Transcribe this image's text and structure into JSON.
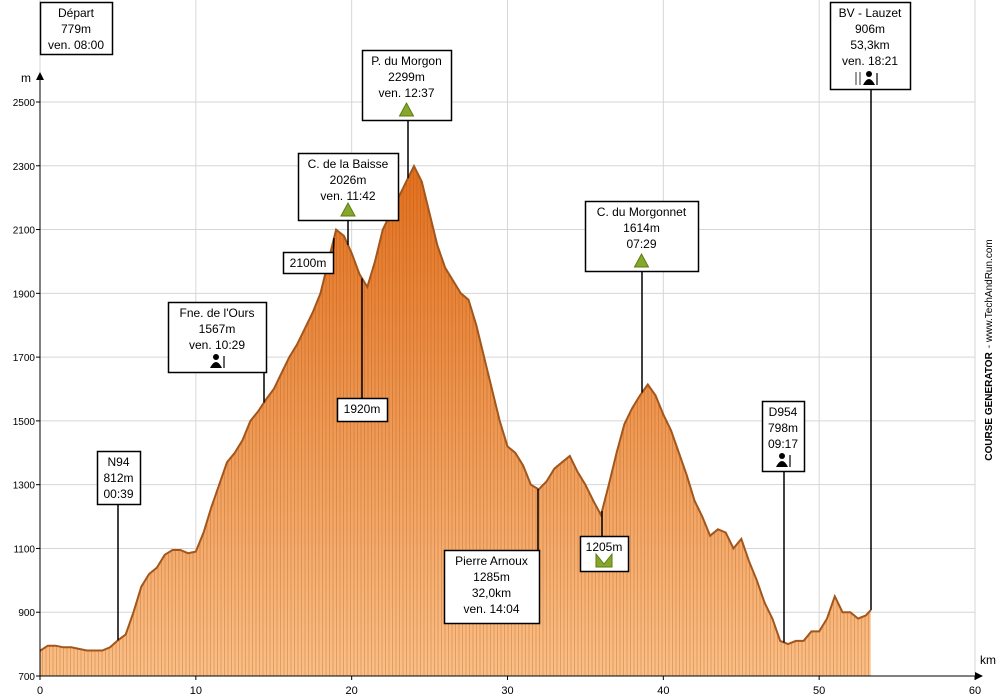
{
  "chart_data": {
    "type": "area",
    "x_label": "km",
    "y_label": "m",
    "xlim": [
      0,
      60
    ],
    "ylim": [
      700,
      2500
    ],
    "xticks": [
      0,
      10,
      20,
      30,
      40,
      50,
      60
    ],
    "yticks": [
      700,
      900,
      1100,
      1300,
      1500,
      1700,
      1900,
      2100,
      2300,
      2500
    ],
    "grid": true,
    "color": "#ef8a3a",
    "x": [
      0,
      0.5,
      1,
      1.5,
      2,
      3,
      4,
      4.5,
      5,
      5.5,
      6,
      6.5,
      7,
      7.5,
      8,
      8.5,
      9,
      9.5,
      10,
      10.5,
      11,
      11.5,
      12,
      12.5,
      13,
      13.5,
      14,
      14.5,
      15,
      15.5,
      16,
      16.5,
      17,
      17.5,
      18,
      18.5,
      19,
      19.5,
      20,
      20.5,
      21,
      21.5,
      22,
      22.5,
      23,
      23.5,
      24,
      24.5,
      25,
      25.5,
      26,
      27,
      27.5,
      28,
      28.5,
      29,
      29.5,
      30,
      30.5,
      31,
      31.5,
      32,
      32.5,
      33,
      33.5,
      34,
      34.5,
      35,
      35.5,
      36,
      36.5,
      37,
      37.5,
      38,
      38.5,
      39,
      39.5,
      40,
      40.5,
      41,
      41.5,
      42,
      42.5,
      43,
      43.5,
      44,
      44.5,
      45,
      45.5,
      46,
      46.5,
      47,
      47.5,
      48,
      48.5,
      49,
      49.5,
      50,
      50.5,
      51,
      51.5,
      52,
      52.5,
      53,
      53.3
    ],
    "values": [
      779,
      795,
      795,
      790,
      790,
      780,
      780,
      790,
      812,
      830,
      900,
      980,
      1020,
      1040,
      1080,
      1095,
      1095,
      1085,
      1090,
      1150,
      1230,
      1300,
      1370,
      1400,
      1440,
      1500,
      1530,
      1567,
      1600,
      1650,
      1700,
      1740,
      1790,
      1840,
      1900,
      2000,
      2100,
      2080,
      2026,
      1960,
      1920,
      2000,
      2100,
      2150,
      2200,
      2250,
      2299,
      2250,
      2150,
      2050,
      1980,
      1900,
      1880,
      1800,
      1700,
      1600,
      1500,
      1420,
      1400,
      1360,
      1300,
      1285,
      1310,
      1350,
      1370,
      1390,
      1340,
      1300,
      1250,
      1205,
      1300,
      1400,
      1490,
      1540,
      1580,
      1614,
      1580,
      1520,
      1470,
      1400,
      1330,
      1250,
      1200,
      1140,
      1160,
      1150,
      1100,
      1130,
      1060,
      1000,
      930,
      880,
      810,
      800,
      810,
      810,
      840,
      840,
      880,
      950,
      900,
      900,
      880,
      890,
      906
    ],
    "annotations": [
      {
        "lines": [
          "Départ",
          "779m",
          "ven. 08:00"
        ]
      },
      {
        "lines": [
          "N94",
          "812m",
          "00:39"
        ]
      },
      {
        "lines": [
          "Fne. de l'Ours",
          "1567m",
          "ven. 10:29"
        ]
      },
      {
        "lines": [
          "2100m"
        ]
      },
      {
        "lines": [
          "C. de la Baisse",
          "2026m",
          "ven. 11:42"
        ]
      },
      {
        "lines": [
          "1920m"
        ]
      },
      {
        "lines": [
          "P. du Morgon",
          "2299m",
          "ven. 12:37"
        ]
      },
      {
        "lines": [
          "C. du Morgonnet",
          "1614m",
          "07:29"
        ]
      },
      {
        "lines": [
          "Pierre Arnoux",
          "1285m",
          "32,0km",
          "ven. 14:04"
        ]
      },
      {
        "lines": [
          "1205m"
        ]
      },
      {
        "lines": [
          "D954",
          "798m",
          "09:17"
        ]
      },
      {
        "lines": [
          "BV - Lauzet",
          "906m",
          "53,3km",
          "ven. 18:21"
        ]
      }
    ],
    "credit": {
      "brand": "COURSE GENERATOR",
      "site": "- www.TechAndRun.com"
    }
  }
}
